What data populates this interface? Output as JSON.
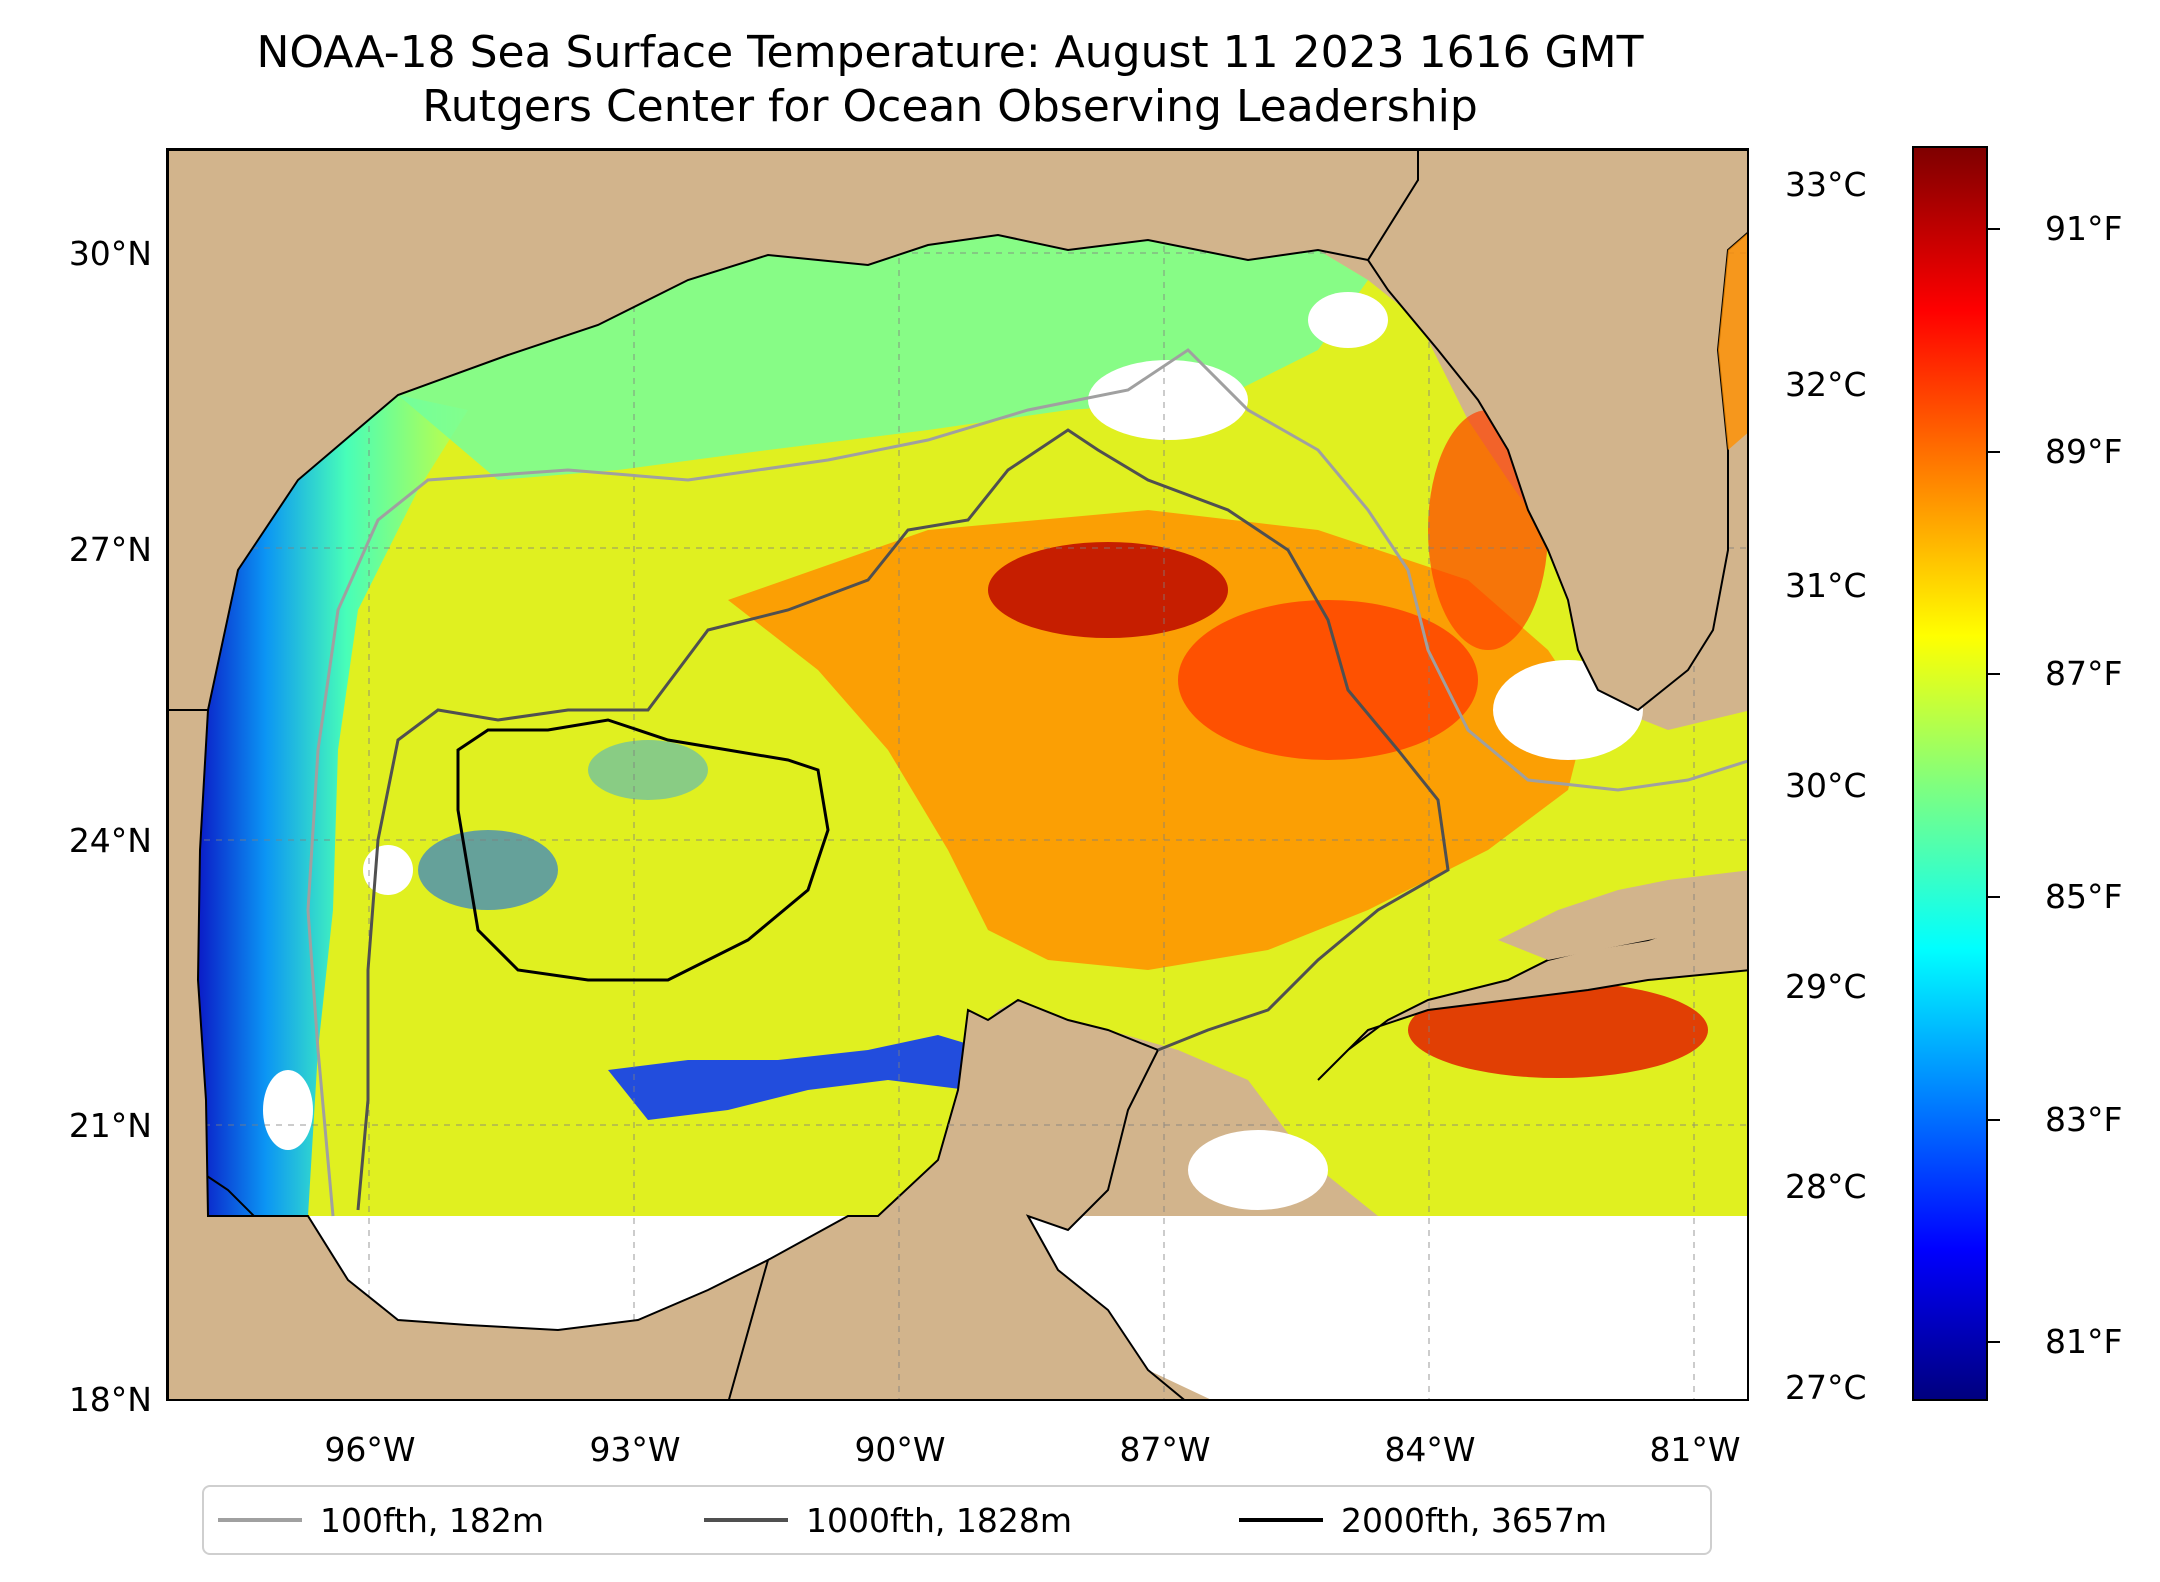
{
  "title": {
    "line1": "NOAA-18 Sea Surface Temperature: August 11 2023 1616 GMT",
    "line2": "Rutgers Center for Ocean Observing Leadership"
  },
  "map": {
    "latitude_labels": [
      "30°N",
      "27°N",
      "24°N",
      "21°N",
      "18°N"
    ],
    "longitude_labels": [
      "96°W",
      "93°W",
      "90°W",
      "87°W",
      "84°W",
      "81°W"
    ],
    "extent": {
      "lon": [
        -98.25,
        -80.5
      ],
      "lat": [
        18,
        31.3
      ]
    },
    "land_color": "#d2b48c",
    "no_data_color": "#ffffff",
    "gridlines": true
  },
  "colorbar": {
    "colormap": "jet",
    "celsius_labels": [
      "33°C",
      "32°C",
      "31°C",
      "30°C",
      "29°C",
      "28°C",
      "27°C"
    ],
    "fahrenheit_labels": [
      "91°F",
      "89°F",
      "87°F",
      "85°F",
      "83°F",
      "81°F"
    ],
    "celsius_values": [
      33,
      32,
      31,
      30,
      29,
      28,
      27
    ],
    "fahrenheit_values": [
      91,
      89,
      87,
      85,
      83,
      81
    ],
    "range_f": [
      80.4,
      92.0
    ]
  },
  "legend": {
    "entries": [
      {
        "label": "100fth, 182m",
        "color": "#a0a0a0"
      },
      {
        "label": "1000fth, 1828m",
        "color": "#505050"
      },
      {
        "label": "2000fth, 3657m",
        "color": "#000000"
      }
    ]
  }
}
